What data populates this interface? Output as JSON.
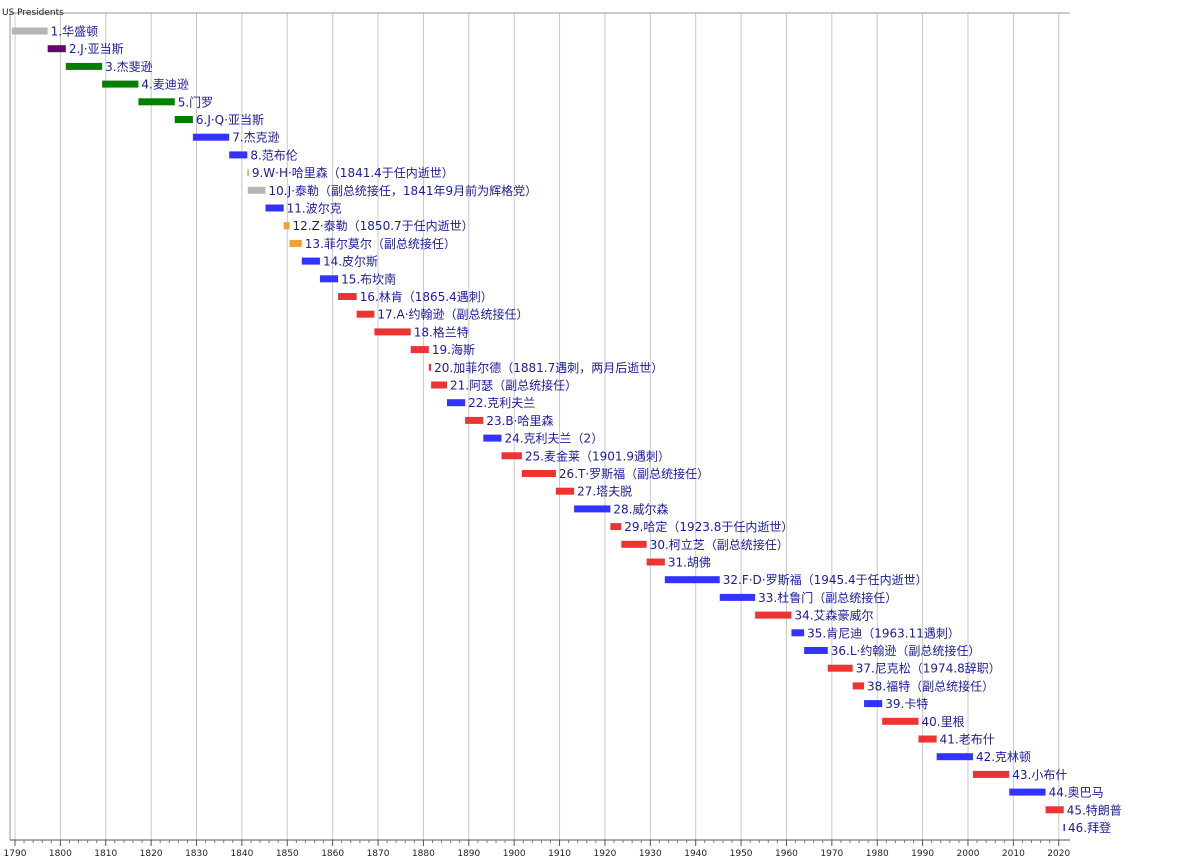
{
  "chart_data": {
    "type": "timeline",
    "title": "US Presidents",
    "x_range": [
      1789,
      2021
    ],
    "x_ticks": [
      1790,
      1800,
      1810,
      1820,
      1830,
      1840,
      1850,
      1860,
      1870,
      1880,
      1890,
      1900,
      1910,
      1920,
      1930,
      1940,
      1950,
      1960,
      1970,
      1980,
      1990,
      2000,
      2010,
      2020
    ],
    "grid": true,
    "colors": {
      "none": "#b5b5b5",
      "federalist": "#6c0277",
      "democratic_republican": "#008000",
      "democratic": "#3333ff",
      "whig": "#f0a030",
      "republican": "#ee3333"
    },
    "presidents": [
      {
        "label": "1.华盛顿",
        "start": 1789.3,
        "end": 1797.2,
        "party": "none"
      },
      {
        "label": "2.J·亚当斯",
        "start": 1797.2,
        "end": 1801.2,
        "party": "federalist"
      },
      {
        "label": "3.杰斐逊",
        "start": 1801.2,
        "end": 1809.2,
        "party": "democratic_republican"
      },
      {
        "label": "4.麦迪逊",
        "start": 1809.2,
        "end": 1817.2,
        "party": "democratic_republican"
      },
      {
        "label": "5.门罗",
        "start": 1817.2,
        "end": 1825.2,
        "party": "democratic_republican"
      },
      {
        "label": "6.J·Q·亚当斯",
        "start": 1825.2,
        "end": 1829.2,
        "party": "democratic_republican"
      },
      {
        "label": "7.杰克逊",
        "start": 1829.2,
        "end": 1837.2,
        "party": "democratic"
      },
      {
        "label": "8.范布伦",
        "start": 1837.2,
        "end": 1841.2,
        "party": "democratic"
      },
      {
        "label": "9.W·H·哈里森（1841.4于任内逝世）",
        "start": 1841.2,
        "end": 1841.3,
        "party": "whig"
      },
      {
        "label": "10.J·泰勒（副总统接任，1841年9月前为辉格党）",
        "start": 1841.3,
        "end": 1845.2,
        "party": "none"
      },
      {
        "label": "11.波尔克",
        "start": 1845.2,
        "end": 1849.2,
        "party": "democratic"
      },
      {
        "label": "12.Z·泰勒（1850.7于任内逝世）",
        "start": 1849.2,
        "end": 1850.5,
        "party": "whig"
      },
      {
        "label": "13.菲尔莫尔（副总统接任）",
        "start": 1850.5,
        "end": 1853.2,
        "party": "whig"
      },
      {
        "label": "14.皮尔斯",
        "start": 1853.2,
        "end": 1857.2,
        "party": "democratic"
      },
      {
        "label": "15.布坎南",
        "start": 1857.2,
        "end": 1861.2,
        "party": "democratic"
      },
      {
        "label": "16.林肯（1865.4遇刺）",
        "start": 1861.2,
        "end": 1865.3,
        "party": "republican"
      },
      {
        "label": "17.A·约翰逊（副总统接任）",
        "start": 1865.3,
        "end": 1869.2,
        "party": "republican"
      },
      {
        "label": "18.格兰特",
        "start": 1869.2,
        "end": 1877.2,
        "party": "republican"
      },
      {
        "label": "19.海斯",
        "start": 1877.2,
        "end": 1881.2,
        "party": "republican"
      },
      {
        "label": "20.加菲尔德（1881.7遇刺，两月后逝世）",
        "start": 1881.2,
        "end": 1881.7,
        "party": "republican"
      },
      {
        "label": "21.阿瑟（副总统接任）",
        "start": 1881.7,
        "end": 1885.2,
        "party": "republican"
      },
      {
        "label": "22.克利夫兰",
        "start": 1885.2,
        "end": 1889.2,
        "party": "democratic"
      },
      {
        "label": "23.B·哈里森",
        "start": 1889.2,
        "end": 1893.2,
        "party": "republican"
      },
      {
        "label": "24.克利夫兰（2）",
        "start": 1893.2,
        "end": 1897.2,
        "party": "democratic"
      },
      {
        "label": "25.麦金莱（1901.9遇刺）",
        "start": 1897.2,
        "end": 1901.7,
        "party": "republican"
      },
      {
        "label": "26.T·罗斯福（副总统接任）",
        "start": 1901.7,
        "end": 1909.2,
        "party": "republican"
      },
      {
        "label": "27.塔夫脱",
        "start": 1909.2,
        "end": 1913.2,
        "party": "republican"
      },
      {
        "label": "28.威尔森",
        "start": 1913.2,
        "end": 1921.2,
        "party": "democratic"
      },
      {
        "label": "29.哈定（1923.8于任内逝世）",
        "start": 1921.2,
        "end": 1923.6,
        "party": "republican"
      },
      {
        "label": "30.柯立芝（副总统接任）",
        "start": 1923.6,
        "end": 1929.2,
        "party": "republican"
      },
      {
        "label": "31.胡佛",
        "start": 1929.2,
        "end": 1933.2,
        "party": "republican"
      },
      {
        "label": "32.F·D·罗斯福（1945.4于任内逝世）",
        "start": 1933.2,
        "end": 1945.3,
        "party": "democratic"
      },
      {
        "label": "33.杜鲁门（副总统接任）",
        "start": 1945.3,
        "end": 1953.1,
        "party": "democratic"
      },
      {
        "label": "34.艾森豪威尔",
        "start": 1953.1,
        "end": 1961.1,
        "party": "republican"
      },
      {
        "label": "35.肯尼迪（1963.11遇刺）",
        "start": 1961.1,
        "end": 1963.9,
        "party": "democratic"
      },
      {
        "label": "36.L·约翰逊（副总统接任）",
        "start": 1963.9,
        "end": 1969.1,
        "party": "democratic"
      },
      {
        "label": "37.尼克松（1974.8辞职）",
        "start": 1969.1,
        "end": 1974.6,
        "party": "republican"
      },
      {
        "label": "38.福特（副总统接任）",
        "start": 1974.6,
        "end": 1977.1,
        "party": "republican"
      },
      {
        "label": "39.卡特",
        "start": 1977.1,
        "end": 1981.1,
        "party": "democratic"
      },
      {
        "label": "40.里根",
        "start": 1981.1,
        "end": 1989.1,
        "party": "republican"
      },
      {
        "label": "41.老布什",
        "start": 1989.1,
        "end": 1993.1,
        "party": "republican"
      },
      {
        "label": "42.克林顿",
        "start": 1993.1,
        "end": 2001.1,
        "party": "democratic"
      },
      {
        "label": "43.小布什",
        "start": 2001.1,
        "end": 2009.1,
        "party": "republican"
      },
      {
        "label": "44.奥巴马",
        "start": 2009.1,
        "end": 2017.1,
        "party": "democratic"
      },
      {
        "label": "45.特朗普",
        "start": 2017.1,
        "end": 2021.1,
        "party": "republican"
      },
      {
        "label": "46.拜登",
        "start": 2021.05,
        "end": 2021.1,
        "party": "democratic"
      }
    ]
  }
}
